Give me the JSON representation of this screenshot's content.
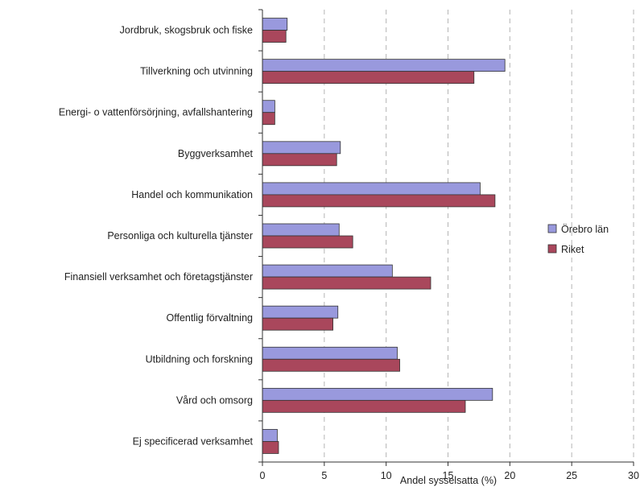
{
  "chart_data": {
    "type": "bar",
    "orientation": "horizontal",
    "categories": [
      "Jordbruk, skogsbruk och fiske",
      "Tillverkning och utvinning",
      "Energi- o vattenförsörjning, avfallshantering",
      "Byggverksamhet",
      "Handel och kommunikation",
      "Personliga och kulturella tjänster",
      "Finansiell verksamhet och företagstjänster",
      "Offentlig förvaltning",
      "Utbildning och forskning",
      "Vård och omsorg",
      "Ej specificerad verksamhet"
    ],
    "series": [
      {
        "name": "Örebro län",
        "color": "#9999dd",
        "values": [
          2.0,
          19.6,
          1.0,
          6.3,
          17.6,
          6.2,
          10.5,
          6.1,
          10.9,
          18.6,
          1.2
        ]
      },
      {
        "name": "Riket",
        "color": "#a9475c",
        "values": [
          1.9,
          17.1,
          1.0,
          6.0,
          18.8,
          7.3,
          13.6,
          5.7,
          11.1,
          16.4,
          1.3
        ]
      }
    ],
    "xlabel": "Andel sysselsatta (%)",
    "ylabel": "",
    "title": "",
    "xlim": [
      0,
      30
    ],
    "xticks": [
      0,
      5,
      10,
      15,
      20,
      25,
      30
    ],
    "grid": "vertical-dashed",
    "legend_position": "right"
  }
}
